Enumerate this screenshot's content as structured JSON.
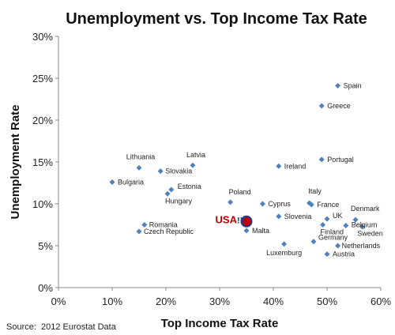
{
  "chart_data": {
    "type": "scatter",
    "title": "Unemployment vs. Top Income Tax Rate",
    "xlabel": "Top Income Tax Rate",
    "ylabel": "Unemployment Rate",
    "xlim": [
      0,
      60
    ],
    "ylim": [
      0,
      30
    ],
    "x_ticks": [
      "0%",
      "10%",
      "20%",
      "30%",
      "40%",
      "50%",
      "60%"
    ],
    "y_ticks": [
      "0%",
      "5%",
      "10%",
      "15%",
      "20%",
      "25%",
      "30%"
    ],
    "grid": false,
    "legend": "none",
    "marker_color": "#4f81bd",
    "highlight_color": "#c00000",
    "points": [
      {
        "label": "Spain",
        "x": 52,
        "y": 24.1
      },
      {
        "label": "Greece",
        "x": 49,
        "y": 21.7
      },
      {
        "label": "Portugal",
        "x": 49,
        "y": 15.3
      },
      {
        "label": "Ireland",
        "x": 41,
        "y": 14.5
      },
      {
        "label": "Latvia",
        "x": 25,
        "y": 14.6
      },
      {
        "label": "Lithuania",
        "x": 15,
        "y": 14.3
      },
      {
        "label": "Slovakia",
        "x": 19,
        "y": 13.9
      },
      {
        "label": "Bulgaria",
        "x": 10,
        "y": 12.6
      },
      {
        "label": "Estonia",
        "x": 21,
        "y": 11.7
      },
      {
        "label": "Hungary",
        "x": 20.3,
        "y": 11.2
      },
      {
        "label": "Poland",
        "x": 32,
        "y": 10.2
      },
      {
        "label": "Cyprus",
        "x": 38,
        "y": 10.0
      },
      {
        "label": "Italy",
        "x": 46.7,
        "y": 10.1
      },
      {
        "label": "France",
        "x": 47.1,
        "y": 9.9
      },
      {
        "label": "Slovenia",
        "x": 41,
        "y": 8.5
      },
      {
        "label": "UK",
        "x": 50,
        "y": 8.2
      },
      {
        "label": "Denmark",
        "x": 55.3,
        "y": 8.1
      },
      {
        "label": "Belgium",
        "x": 53.5,
        "y": 7.4
      },
      {
        "label": "Sweden",
        "x": 56.5,
        "y": 7.3
      },
      {
        "label": "Finland",
        "x": 49.2,
        "y": 7.5
      },
      {
        "label": "Romania",
        "x": 16,
        "y": 7.5
      },
      {
        "label": "Czech Republic",
        "x": 15,
        "y": 6.7
      },
      {
        "label": "Malta",
        "x": 35,
        "y": 6.8
      },
      {
        "label": "Germany",
        "x": 47.5,
        "y": 5.5
      },
      {
        "label": "Luxemburg",
        "x": 42,
        "y": 5.2
      },
      {
        "label": "Netherlands",
        "x": 52,
        "y": 5.0
      },
      {
        "label": "Austria",
        "x": 50,
        "y": 4.0
      }
    ],
    "highlight": {
      "label": "USA",
      "suffix": "!!!",
      "x": 35,
      "y": 7.9
    }
  },
  "source": "Source:  2012 Eurostat Data"
}
